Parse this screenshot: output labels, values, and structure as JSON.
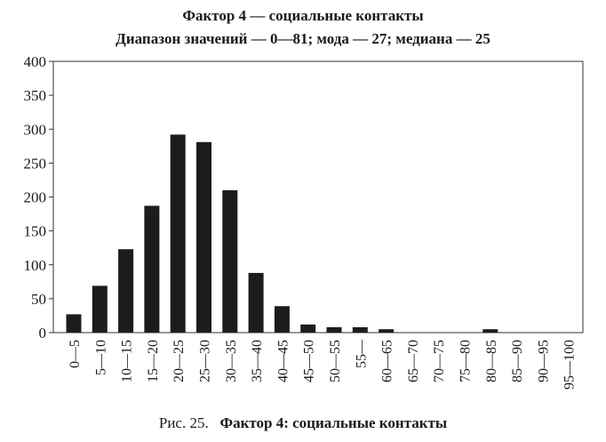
{
  "chart_data": {
    "type": "bar",
    "title": "Фактор 4 — социальные контакты",
    "subtitle": "Диапазон значений — 0—81; мода — 27; медиана — 25",
    "categories": [
      "0—5",
      "5—10",
      "10—15",
      "15—20",
      "20—25",
      "25—30",
      "30—35",
      "35—40",
      "40—45",
      "45—50",
      "50—55",
      "55—",
      "60—65",
      "65—70",
      "70—75",
      "75—80",
      "80—85",
      "85—90",
      "90—95",
      "95—100"
    ],
    "values": [
      27,
      69,
      123,
      187,
      292,
      281,
      210,
      88,
      39,
      12,
      8,
      8,
      5,
      0,
      0,
      0,
      5,
      0,
      0,
      0
    ],
    "ylim": [
      0,
      400
    ],
    "yticks": [
      0,
      50,
      100,
      150,
      200,
      250,
      300,
      350,
      400
    ],
    "grid": false,
    "legend": "none",
    "bar_color": "#1c1c1c"
  },
  "caption": {
    "prefix": "Рис. 25.",
    "bold": "Фактор 4:  социальные контакты"
  }
}
